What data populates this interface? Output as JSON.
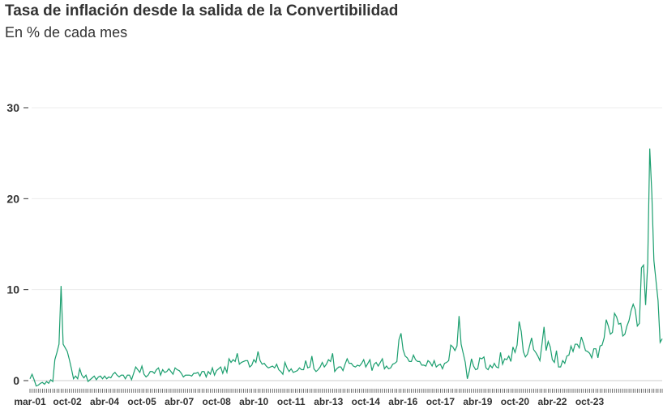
{
  "header": {
    "title": "Tasa de inflación desde la salida de la Convertibilidad",
    "subtitle": "En % de cada mes"
  },
  "chart_data": {
    "type": "line",
    "title": "Tasa de inflación desde la salida de la Convertibilidad",
    "subtitle": "En % de cada mes",
    "xlabel": "",
    "ylabel": "",
    "ylim": [
      0,
      30
    ],
    "yticks": [
      0,
      10,
      20,
      30
    ],
    "grid": true,
    "x_start": "mar-01",
    "x_end": "nov-23",
    "xtick_labels": [
      "mar-01",
      "oct-02",
      "abr-04",
      "oct-05",
      "abr-07",
      "oct-08",
      "abr-10",
      "oct-11",
      "abr-13",
      "oct-14",
      "abr-16",
      "oct-17",
      "abr-19",
      "oct-20",
      "abr-22",
      "oct-23"
    ],
    "series": [
      {
        "color": "#1a9e6e",
        "values": [
          0.2,
          0.7,
          0.1,
          -0.6,
          -0.5,
          -0.3,
          -0.2,
          -0.4,
          -0.1,
          -0.3,
          0.1,
          -0.1,
          2.3,
          3.1,
          4.0,
          10.4,
          4.0,
          3.6,
          3.2,
          2.3,
          1.3,
          0.2,
          0.5,
          0.2,
          1.3,
          0.6,
          0.3,
          0.6,
          -0.1,
          0.1,
          0.3,
          0.5,
          0.1,
          0.4,
          0.5,
          0.2,
          0.5,
          0.2,
          0.4,
          0.3,
          0.7,
          0.9,
          0.6,
          0.4,
          0.6,
          0.6,
          0.2,
          0.6,
          0.6,
          0.1,
          0.8,
          1.5,
          1.2,
          0.9,
          1.6,
          0.7,
          0.4,
          0.6,
          1.0,
          1.0,
          0.8,
          1.2,
          1.4,
          0.6,
          1.2,
          0.9,
          1.0,
          1.3,
          1.0,
          0.7,
          1.4,
          1.2,
          1.1,
          0.8,
          0.4,
          0.6,
          0.6,
          0.6,
          0.5,
          0.8,
          0.8,
          0.9,
          0.5,
          1.0,
          1.0,
          0.4,
          1.0,
          0.7,
          1.4,
          0.6,
          1.1,
          1.3,
          1.5,
          0.8,
          1.5,
          0.9,
          2.4,
          2.0,
          2.3,
          2.1,
          3.0,
          1.8,
          2.0,
          2.1,
          2.2,
          2.2,
          1.5,
          1.7,
          2.3,
          2.0,
          3.2,
          2.2,
          1.8,
          1.9,
          1.6,
          1.4,
          1.5,
          1.6,
          1.4,
          1.8,
          1.2,
          1.0,
          0.7,
          2.0,
          1.4,
          1.0,
          1.3,
          0.9,
          1.0,
          1.1,
          1.4,
          1.2,
          1.2,
          2.2,
          1.4,
          1.5,
          2.7,
          1.3,
          1.0,
          1.2,
          1.5,
          2.0,
          1.5,
          1.8,
          2.3,
          2.1,
          3.0,
          1.0,
          1.3,
          1.5,
          1.5,
          1.1,
          1.8,
          2.4,
          1.9,
          1.9,
          1.6,
          1.5,
          1.7,
          1.6,
          1.9,
          2.3,
          1.5,
          1.9,
          2.3,
          1.1,
          1.8,
          2.0,
          1.6,
          2.0,
          2.4,
          1.3,
          1.6,
          1.3,
          1.4,
          1.8,
          1.9,
          2.1,
          4.5,
          5.2,
          3.4,
          2.7,
          2.5,
          2.1,
          2.1,
          2.8,
          2.3,
          2.1,
          2.1,
          1.7,
          1.7,
          1.6,
          2.2,
          2.0,
          1.6,
          2.2,
          1.5,
          1.7,
          1.8,
          1.3,
          1.9,
          2.0,
          2.2,
          3.9,
          3.7,
          3.3,
          3.8,
          7.1,
          4.0,
          3.0,
          2.0,
          0.2,
          1.1,
          2.4,
          1.6,
          1.2,
          1.3,
          2.5,
          2.4,
          2.6,
          1.4,
          1.2,
          1.7,
          1.4,
          1.9,
          1.5,
          1.4,
          3.1,
          1.8,
          2.4,
          2.3,
          2.7,
          2.1,
          3.7,
          3.1,
          3.9,
          6.5,
          5.4,
          3.2,
          2.6,
          2.9,
          3.8,
          4.7,
          3.4,
          3.1,
          2.7,
          2.2,
          4.0,
          5.9,
          3.3,
          4.3,
          3.7,
          2.3,
          2.0,
          3.3,
          1.5,
          1.5,
          2.2,
          1.9,
          2.7,
          2.8,
          3.8,
          3.2,
          4.0,
          4.0,
          3.6,
          4.8,
          4.1,
          3.3,
          3.2,
          3.0,
          2.5,
          3.5,
          3.5,
          2.5,
          3.8,
          3.9,
          4.7,
          6.7,
          6.0,
          5.1,
          5.3,
          7.4,
          7.0,
          6.2,
          6.3,
          4.9,
          5.1,
          6.0,
          6.6,
          7.7,
          8.4,
          7.8,
          6.0,
          6.3,
          12.4,
          12.7,
          8.3,
          12.8,
          25.5,
          20.6,
          13.2,
          11.0,
          8.8,
          4.2,
          4.6
        ]
      }
    ]
  }
}
